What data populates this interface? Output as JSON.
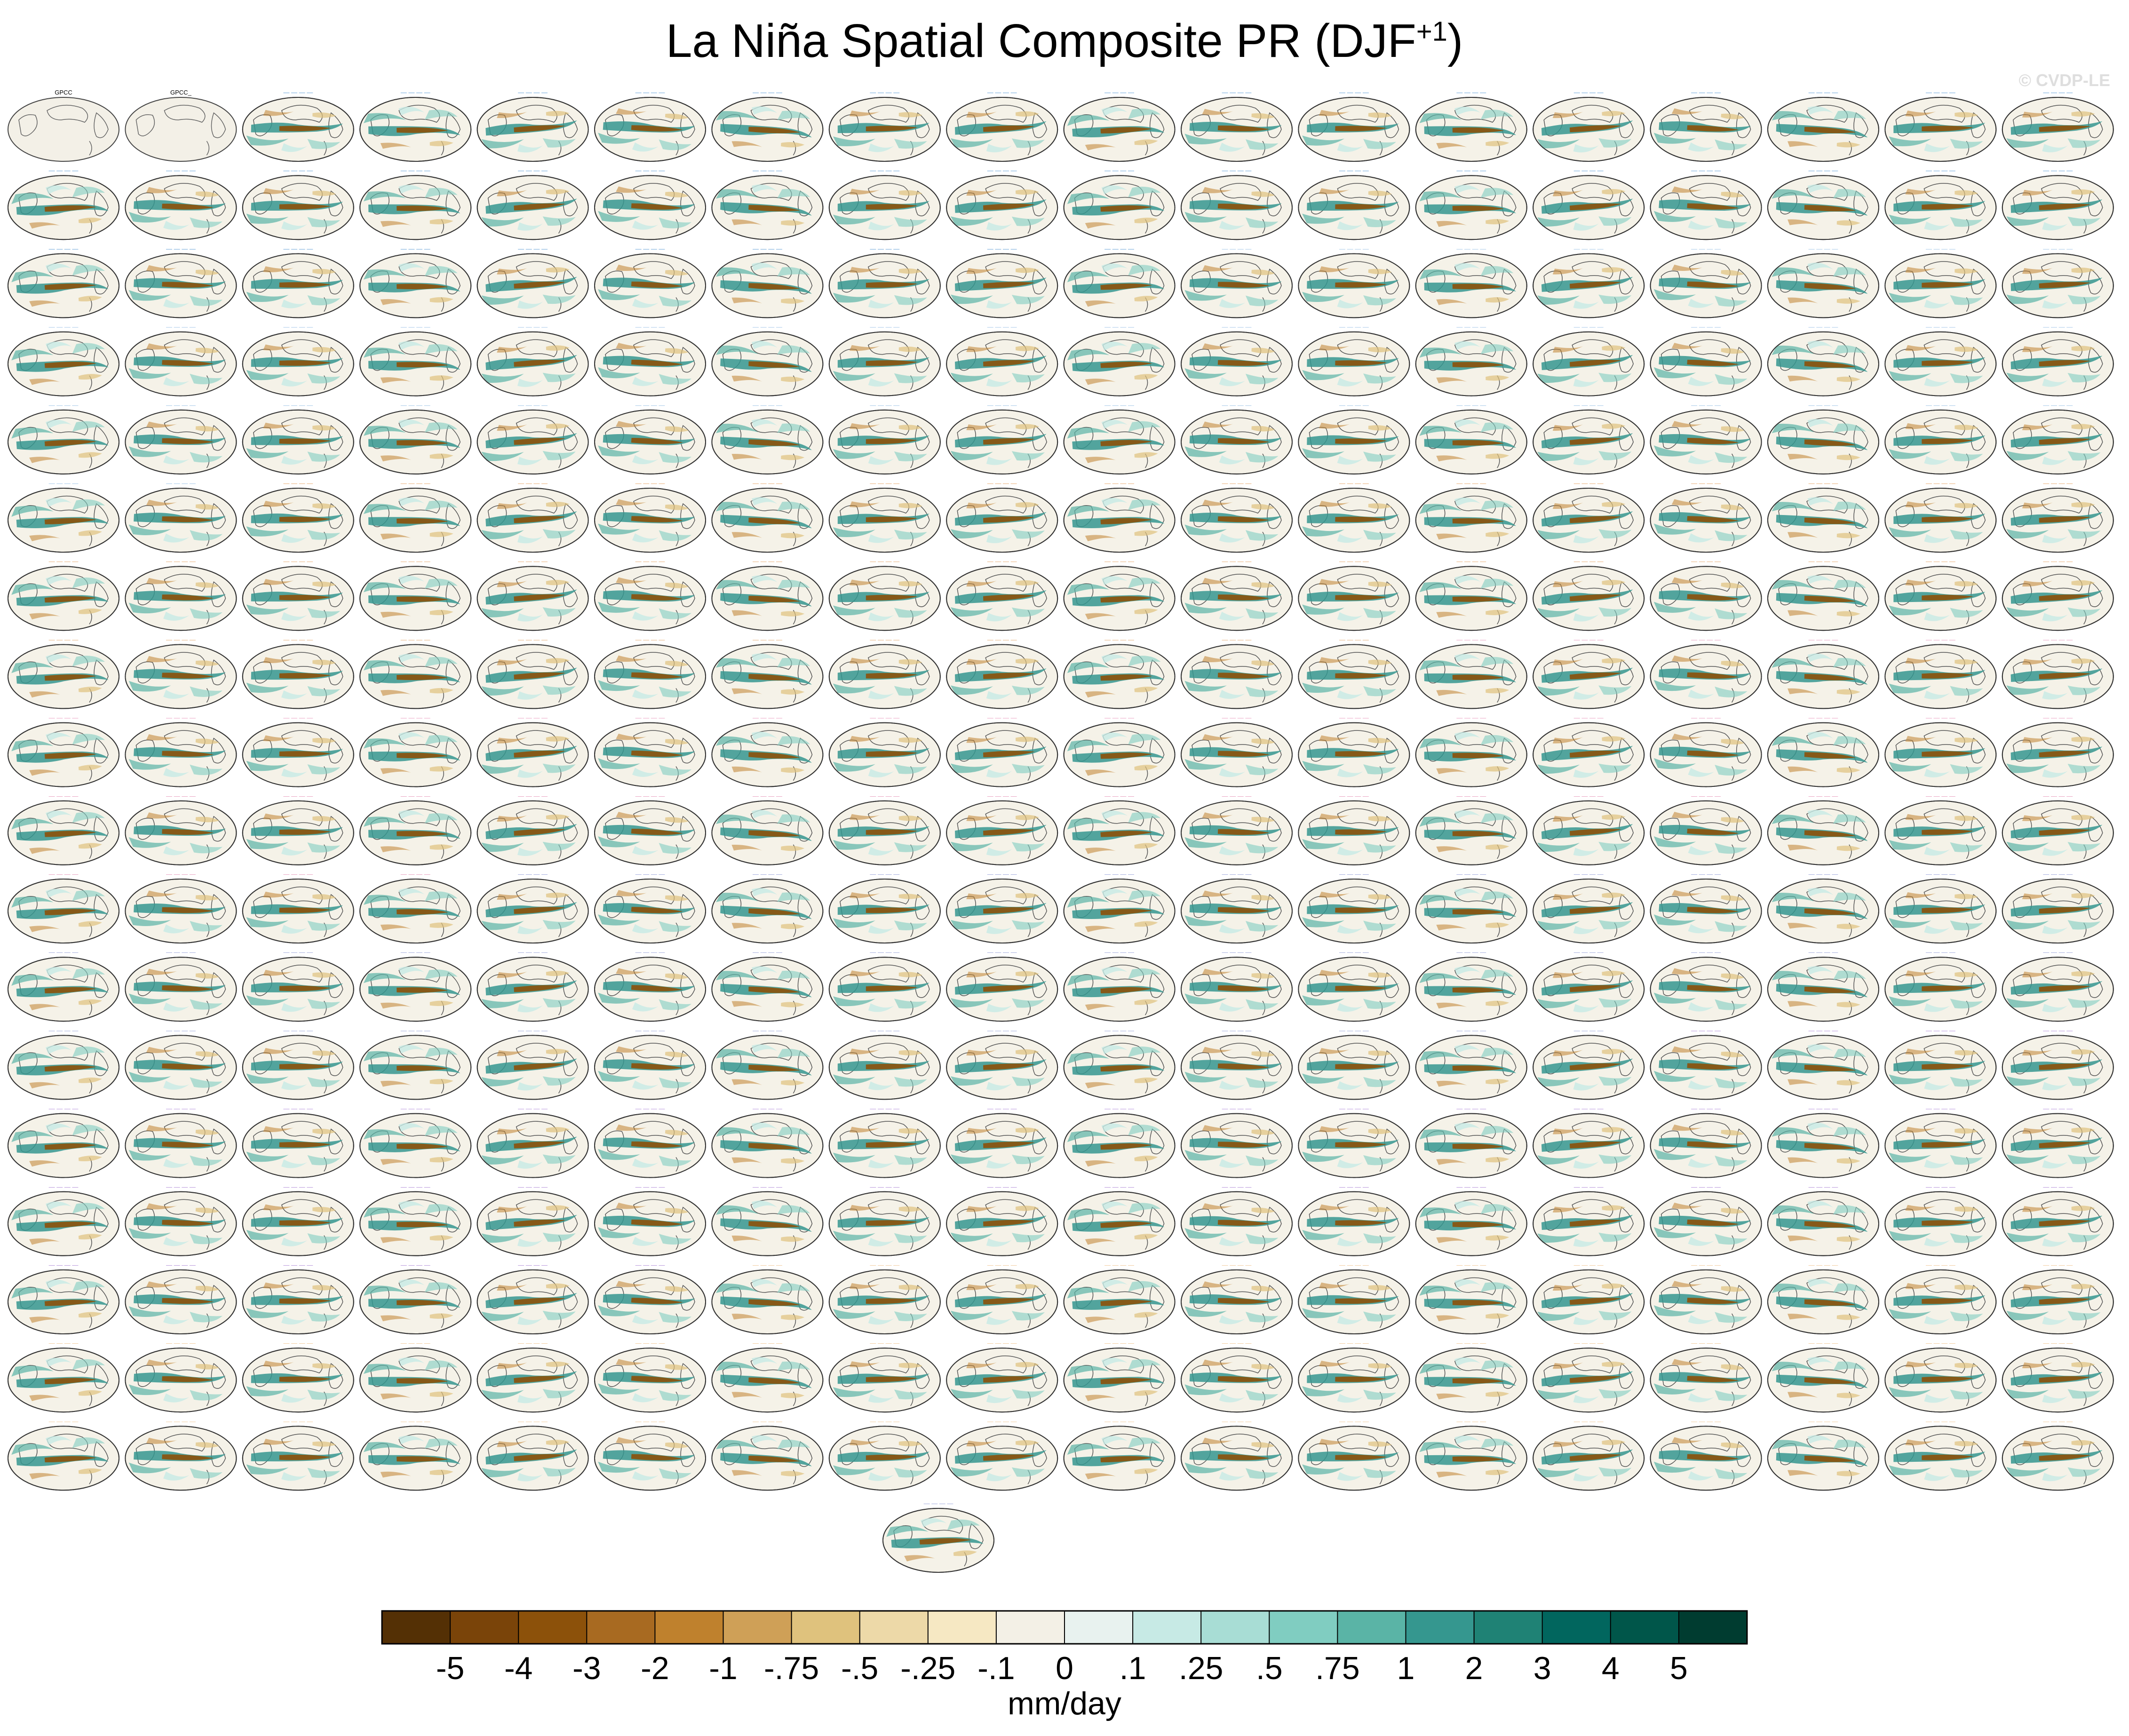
{
  "chart_data": {
    "type": "heatmap",
    "title_main": "La Niña Spatial Composite PR (DJF",
    "title_sup": "+1",
    "title_close": ")",
    "units": "mm/day",
    "colorbar_levels": [
      "-5",
      "-4",
      "-3",
      "-2",
      "-1",
      "-.75",
      "-.5",
      "-.25",
      "-.1",
      "0",
      ".1",
      ".25",
      ".5",
      ".75",
      "1",
      "2",
      "3",
      "4",
      "5"
    ],
    "colorbar_colors": [
      "#543005",
      "#7a4409",
      "#8c510a",
      "#a86a21",
      "#bf812d",
      "#cfa057",
      "#dfc27d",
      "#edd9a8",
      "#f6e8c3",
      "#f3f0e6",
      "#e8f2ef",
      "#c7eae5",
      "#a8ddd5",
      "#80cdc1",
      "#5ab4a6",
      "#35978f",
      "#1f8275",
      "#01665e",
      "#00564a",
      "#003c30"
    ],
    "panel_grid": {
      "rows": 18,
      "cols": 18,
      "extra_panels": 1,
      "total_panels": 325
    },
    "observations": [
      "GPCC",
      "GPCC_"
    ],
    "model_label_colors": [
      "#5b9bd5",
      "#9dc3e6",
      "#e6a76b",
      "#e89abc",
      "#9aa4d9",
      "#b08bd8",
      "#f0c896"
    ]
  },
  "watermark": "© CVDP-LE"
}
